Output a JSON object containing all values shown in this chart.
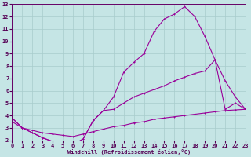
{
  "xlabel": "Windchill (Refroidissement éolien,°C)",
  "bg_color": "#c5e5e5",
  "line_color": "#990099",
  "grid_color": "#a8cccc",
  "xlim": [
    0,
    23
  ],
  "ylim": [
    2,
    13
  ],
  "xticks": [
    0,
    1,
    2,
    3,
    4,
    5,
    6,
    7,
    8,
    9,
    10,
    11,
    12,
    13,
    14,
    15,
    16,
    17,
    18,
    19,
    20,
    21,
    22,
    23
  ],
  "yticks": [
    2,
    3,
    4,
    5,
    6,
    7,
    8,
    9,
    10,
    11,
    12,
    13
  ],
  "line1_x": [
    0,
    1,
    2,
    3,
    4,
    5,
    6,
    7,
    8,
    9,
    10,
    11,
    12,
    13,
    14,
    15,
    16,
    17,
    18,
    19,
    20,
    21,
    22,
    23
  ],
  "line1_y": [
    3.8,
    3.0,
    2.6,
    2.2,
    1.9,
    1.8,
    1.65,
    2.1,
    3.6,
    4.4,
    5.5,
    7.5,
    8.3,
    9.0,
    10.8,
    11.8,
    12.2,
    12.8,
    12.0,
    10.4,
    8.5,
    6.8,
    5.5,
    4.5
  ],
  "line2_x": [
    0,
    1,
    2,
    3,
    4,
    5,
    6,
    7,
    8,
    9,
    10,
    11,
    12,
    13,
    14,
    15,
    16,
    17,
    18,
    19,
    20,
    21,
    22,
    23
  ],
  "line2_y": [
    3.8,
    3.0,
    2.6,
    2.2,
    1.9,
    1.8,
    1.65,
    2.1,
    3.6,
    4.4,
    4.5,
    5.0,
    5.5,
    5.8,
    6.1,
    6.4,
    6.8,
    7.1,
    7.4,
    7.6,
    8.5,
    4.5,
    5.0,
    4.5
  ],
  "line3_x": [
    0,
    1,
    2,
    3,
    4,
    5,
    6,
    7,
    8,
    9,
    10,
    11,
    12,
    13,
    14,
    15,
    16,
    17,
    18,
    19,
    20,
    21,
    22,
    23
  ],
  "line3_y": [
    3.5,
    3.0,
    2.8,
    2.6,
    2.5,
    2.4,
    2.3,
    2.5,
    2.7,
    2.9,
    3.1,
    3.2,
    3.4,
    3.5,
    3.7,
    3.8,
    3.9,
    4.0,
    4.1,
    4.2,
    4.3,
    4.4,
    4.45,
    4.5
  ]
}
